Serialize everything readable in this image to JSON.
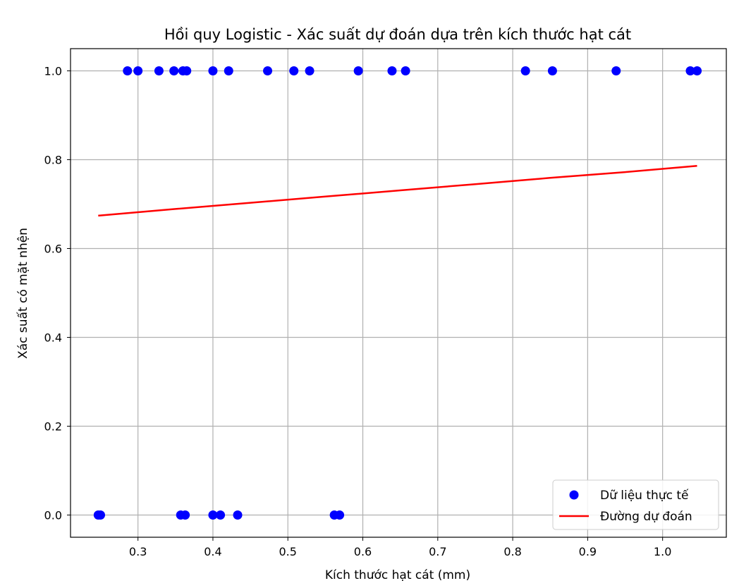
{
  "chart_data": {
    "type": "scatter",
    "title": "Hồi quy Logistic - Xác suất dự đoán dựa trên kích thước hạt cát",
    "xlabel": "Kích thước hạt cát (mm)",
    "ylabel": "Xác suất có mặt nhện",
    "xlim": [
      0.21,
      1.085
    ],
    "ylim": [
      -0.05,
      1.05
    ],
    "xticks": [
      0.3,
      0.4,
      0.5,
      0.6,
      0.7,
      0.8,
      0.9,
      1.0
    ],
    "xtick_labels": [
      "0.3",
      "0.4",
      "0.5",
      "0.6",
      "0.7",
      "0.8",
      "0.9",
      "1.0"
    ],
    "yticks": [
      0.0,
      0.2,
      0.4,
      0.6,
      0.8,
      1.0
    ],
    "ytick_labels": [
      "0.0",
      "0.2",
      "0.4",
      "0.6",
      "0.8",
      "1.0"
    ],
    "grid": true,
    "legend_position": "lower-right",
    "series": [
      {
        "name": "Dữ liệu thực tế",
        "kind": "scatter",
        "color": "#0000ff",
        "points": [
          [
            0.286,
            1
          ],
          [
            0.3,
            1
          ],
          [
            0.328,
            1
          ],
          [
            0.348,
            1
          ],
          [
            0.36,
            1
          ],
          [
            0.365,
            1
          ],
          [
            0.4,
            1
          ],
          [
            0.421,
            1
          ],
          [
            0.473,
            1
          ],
          [
            0.508,
            1
          ],
          [
            0.529,
            1
          ],
          [
            0.594,
            1
          ],
          [
            0.639,
            1
          ],
          [
            0.657,
            1
          ],
          [
            0.817,
            1
          ],
          [
            0.853,
            1
          ],
          [
            0.938,
            1
          ],
          [
            1.037,
            1
          ],
          [
            1.046,
            1
          ],
          [
            0.247,
            0
          ],
          [
            0.25,
            0
          ],
          [
            0.357,
            0
          ],
          [
            0.363,
            0
          ],
          [
            0.4,
            0
          ],
          [
            0.41,
            0
          ],
          [
            0.433,
            0
          ],
          [
            0.562,
            0
          ],
          [
            0.569,
            0
          ]
        ]
      },
      {
        "name": "Đường dự đoán",
        "kind": "line",
        "color": "#ff0000",
        "points": [
          [
            0.247,
            0.674
          ],
          [
            0.35,
            0.689
          ],
          [
            0.45,
            0.703
          ],
          [
            0.55,
            0.717
          ],
          [
            0.65,
            0.731
          ],
          [
            0.75,
            0.745
          ],
          [
            0.85,
            0.759
          ],
          [
            0.95,
            0.772
          ],
          [
            1.046,
            0.786
          ]
        ]
      }
    ]
  }
}
